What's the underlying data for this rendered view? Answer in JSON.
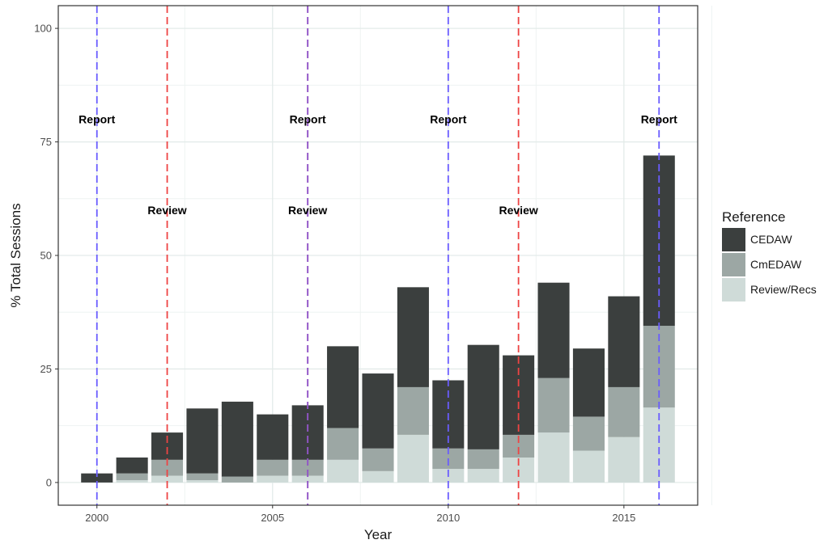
{
  "chart_data": {
    "type": "bar",
    "stacked": true,
    "title": "",
    "xlabel": "Year",
    "ylabel": "% Total Sessions",
    "xlim": [
      1998.9,
      2017.1
    ],
    "ylim": [
      -5,
      105
    ],
    "x_ticks": [
      2000,
      2005,
      2010,
      2015
    ],
    "y_ticks": [
      0,
      25,
      50,
      75,
      100
    ],
    "grid": true,
    "legend": {
      "title": "Reference",
      "placement": "right"
    },
    "categories": [
      2000,
      2001,
      2002,
      2003,
      2004,
      2005,
      2006,
      2007,
      2008,
      2009,
      2010,
      2011,
      2012,
      2013,
      2014,
      2015,
      2016
    ],
    "series": [
      {
        "name": "Review/Recs",
        "color": "#cfdbd8",
        "values": [
          0,
          0.5,
          1.5,
          0.5,
          0,
          1.5,
          1.5,
          5,
          2.5,
          10.5,
          3,
          3,
          5.5,
          11,
          7,
          10,
          16.5
        ]
      },
      {
        "name": "CmEDAW",
        "color": "#9ca7a4",
        "values": [
          0,
          1.5,
          3.5,
          1.5,
          1.3,
          3.5,
          3.5,
          7,
          5,
          10.5,
          4.5,
          4.3,
          5,
          12,
          7.5,
          11,
          18
        ]
      },
      {
        "name": "CEDAW",
        "color": "#3b3f3e",
        "values": [
          2,
          3.5,
          6,
          14.3,
          16.5,
          10,
          12,
          18,
          16.5,
          22,
          15,
          23,
          17.5,
          21,
          15,
          20,
          37.5
        ]
      }
    ],
    "annotations": {
      "report_lines": {
        "color": "#6a5cff",
        "years": [
          2000,
          2006,
          2010,
          2016
        ]
      },
      "review_lines": {
        "color": "#ee4444",
        "years": [
          2002,
          2006,
          2012
        ]
      },
      "report_label": "Report",
      "review_label": "Review",
      "report_y": 80,
      "review_y": 60
    }
  }
}
